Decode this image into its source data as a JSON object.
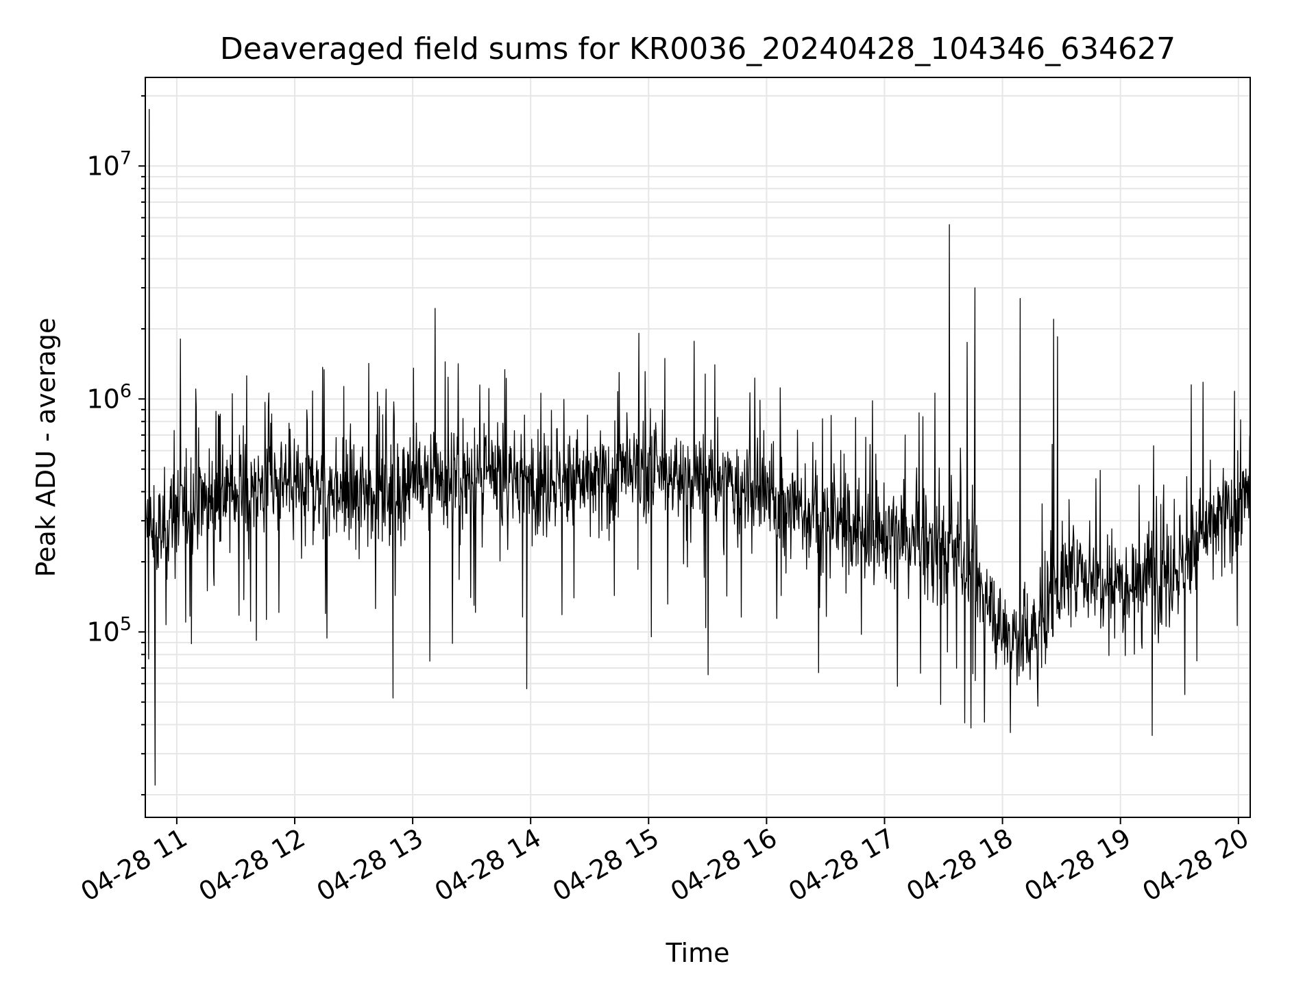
{
  "chart_data": {
    "type": "line",
    "title": "Deaveraged field sums for KR0036_20240428_104346_634627",
    "xlabel": "Time",
    "ylabel": "Peak ADU - average",
    "yscale": "log",
    "grid": true,
    "grid_minor": true,
    "line_color": "#000000",
    "grid_color": "#e6e6e6",
    "x_tick_labels": [
      "04-28 11",
      "04-28 12",
      "04-28 13",
      "04-28 14",
      "04-28 15",
      "04-28 16",
      "04-28 17",
      "04-28 18",
      "04-28 19",
      "04-28 20"
    ],
    "x_tick_values": [
      "2024-04-28 11:00",
      "2024-04-28 12:00",
      "2024-04-28 13:00",
      "2024-04-28 14:00",
      "2024-04-28 15:00",
      "2024-04-28 16:00",
      "2024-04-28 17:00",
      "2024-04-28 18:00",
      "2024-04-28 19:00",
      "2024-04-28 20:00"
    ],
    "x_range": [
      "2024-04-28 10:44",
      "2024-04-28 20:06"
    ],
    "y_ticks": [
      {
        "base": "10",
        "exp": "5",
        "value": 100000
      },
      {
        "base": "10",
        "exp": "6",
        "value": 1000000
      },
      {
        "base": "10",
        "exp": "7",
        "value": 10000000
      }
    ],
    "ylim": [
      16000,
      24000000
    ],
    "series": [
      {
        "values_x": [
          "2024-04-28 10:44",
          "2024-04-28 10:50",
          "2024-04-28 11:00",
          "2024-04-28 11:15",
          "2024-04-28 11:30",
          "2024-04-28 11:45",
          "2024-04-28 12:00",
          "2024-04-28 12:30",
          "2024-04-28 13:00",
          "2024-04-28 13:30",
          "2024-04-28 14:00",
          "2024-04-28 14:30",
          "2024-04-28 15:00",
          "2024-04-28 15:30",
          "2024-04-28 16:00",
          "2024-04-28 16:30",
          "2024-04-28 17:00",
          "2024-04-28 17:30",
          "2024-04-28 17:45",
          "2024-04-28 18:00",
          "2024-04-28 18:15",
          "2024-04-28 18:30",
          "2024-04-28 18:45",
          "2024-04-28 19:00",
          "2024-04-28 19:30",
          "2024-04-28 19:45",
          "2024-04-28 20:06"
        ],
        "values_y": [
          280000,
          250000,
          330000,
          380000,
          400000,
          420000,
          430000,
          400000,
          440000,
          450000,
          460000,
          440000,
          480000,
          440000,
          380000,
          300000,
          260000,
          230000,
          180000,
          100000,
          95000,
          170000,
          180000,
          170000,
          190000,
          280000,
          370000
        ]
      }
    ],
    "peaks": [
      {
        "x": "2024-04-28 10:46",
        "y": 17500000
      },
      {
        "x": "2024-04-28 17:33",
        "y": 5600000
      },
      {
        "x": "2024-04-28 17:46",
        "y": 3000000
      },
      {
        "x": "2024-04-28 17:42",
        "y": 1750000
      },
      {
        "x": "2024-04-28 18:09",
        "y": 2700000
      },
      {
        "x": "2024-04-28 18:26",
        "y": 2200000
      },
      {
        "x": "2024-04-28 18:28",
        "y": 1850000
      },
      {
        "x": "2024-04-28 14:45",
        "y": 1300000
      },
      {
        "x": "2024-04-28 15:54",
        "y": 1230000
      },
      {
        "x": "2024-04-28 19:36",
        "y": 1150000
      },
      {
        "x": "2024-04-28 19:42",
        "y": 1180000
      },
      {
        "x": "2024-04-28 19:58",
        "y": 1080000
      }
    ],
    "dips": [
      {
        "x": "2024-04-28 10:49",
        "y": 22000
      },
      {
        "x": "2024-04-28 18:04",
        "y": 37000
      },
      {
        "x": "2024-04-28 12:50",
        "y": 52000
      },
      {
        "x": "2024-04-28 18:18",
        "y": 48000
      },
      {
        "x": "2024-04-28 13:58",
        "y": 57000
      }
    ]
  }
}
